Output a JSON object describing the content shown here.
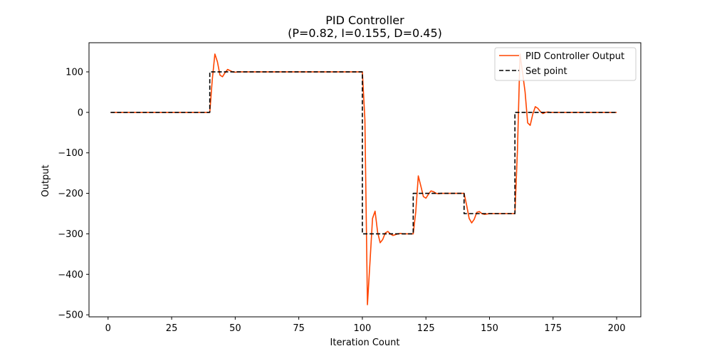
{
  "chart_data": {
    "type": "line",
    "title": "PID Controller",
    "subtitle": "(P=0.82, I=0.155, D=0.45)",
    "xlabel": "Iteration Count",
    "ylabel": "Output",
    "xlim": [
      -7.5,
      209.5
    ],
    "ylim": [
      -505,
      172
    ],
    "x_ticks": [
      0,
      25,
      50,
      75,
      100,
      125,
      150,
      175,
      200
    ],
    "y_ticks": [
      -500,
      -400,
      -300,
      -200,
      -100,
      0,
      100
    ],
    "x_tick_labels": [
      "0",
      "25",
      "50",
      "75",
      "100",
      "125",
      "150",
      "175",
      "200"
    ],
    "y_tick_labels": [
      "−500",
      "−400",
      "−300",
      "−200",
      "−100",
      "0",
      "100"
    ],
    "grid": false,
    "legend_position": "top-right",
    "series": [
      {
        "name": "PID Controller Output",
        "color": "#ff4500",
        "style": "solid",
        "x": [
          1,
          2,
          3,
          4,
          5,
          6,
          7,
          8,
          9,
          10,
          11,
          12,
          13,
          14,
          15,
          16,
          17,
          18,
          19,
          20,
          21,
          22,
          23,
          24,
          25,
          26,
          27,
          28,
          29,
          30,
          31,
          32,
          33,
          34,
          35,
          36,
          37,
          38,
          39,
          40,
          41,
          42,
          43,
          44,
          45,
          46,
          47,
          48,
          49,
          50,
          51,
          52,
          53,
          54,
          55,
          56,
          57,
          58,
          59,
          60,
          61,
          62,
          63,
          64,
          65,
          66,
          67,
          68,
          69,
          70,
          71,
          72,
          73,
          74,
          75,
          76,
          77,
          78,
          79,
          80,
          81,
          82,
          83,
          84,
          85,
          86,
          87,
          88,
          89,
          90,
          91,
          92,
          93,
          94,
          95,
          96,
          97,
          98,
          99,
          100,
          101,
          102,
          103,
          104,
          105,
          106,
          107,
          108,
          109,
          110,
          111,
          112,
          113,
          114,
          115,
          116,
          117,
          118,
          119,
          120,
          121,
          122,
          123,
          124,
          125,
          126,
          127,
          128,
          129,
          130,
          131,
          132,
          133,
          134,
          135,
          136,
          137,
          138,
          139,
          140,
          141,
          142,
          143,
          144,
          145,
          146,
          147,
          148,
          149,
          150,
          151,
          152,
          153,
          154,
          155,
          156,
          157,
          158,
          159,
          160,
          161,
          162,
          163,
          164,
          165,
          166,
          167,
          168,
          169,
          170,
          171,
          172,
          173,
          174,
          175,
          176,
          177,
          178,
          179,
          180,
          181,
          182,
          183,
          184,
          185,
          186,
          187,
          188,
          189,
          190,
          191,
          192,
          193,
          194,
          195,
          196,
          197,
          198,
          199,
          200
        ],
        "y": [
          0,
          0,
          0,
          0,
          0,
          0,
          0,
          0,
          0,
          0,
          0,
          0,
          0,
          0,
          0,
          0,
          0,
          0,
          0,
          0,
          0,
          0,
          0,
          0,
          0,
          0,
          0,
          0,
          0,
          0,
          0,
          0,
          0,
          0,
          0,
          0,
          0,
          0,
          0,
          0,
          82,
          144,
          125,
          92,
          88,
          98,
          106,
          103,
          100,
          99,
          100,
          100,
          100,
          100,
          100,
          100,
          100,
          100,
          100,
          100,
          100,
          100,
          100,
          100,
          100,
          100,
          100,
          100,
          100,
          100,
          100,
          100,
          100,
          100,
          100,
          100,
          100,
          100,
          100,
          100,
          100,
          100,
          100,
          100,
          100,
          100,
          100,
          100,
          100,
          100,
          100,
          100,
          100,
          100,
          100,
          100,
          100,
          100,
          100,
          100,
          -18,
          -475,
          -370,
          -262,
          -244,
          -296,
          -322,
          -314,
          -298,
          -294,
          -300,
          -304,
          -302,
          -300,
          -299,
          -300,
          -300,
          -300,
          -300,
          -300,
          -246,
          -157,
          -182,
          -208,
          -212,
          -202,
          -194,
          -196,
          -200,
          -201,
          -200,
          -200,
          -200,
          -200,
          -200,
          -200,
          -200,
          -200,
          -200,
          -200,
          -229,
          -262,
          -273,
          -264,
          -247,
          -245,
          -250,
          -252,
          -251,
          -250,
          -250,
          -250,
          -250,
          -250,
          -250,
          -250,
          -250,
          -250,
          -250,
          -250,
          -91,
          144,
          98,
          50,
          -26,
          -32,
          -5,
          14,
          10,
          2,
          -3,
          0,
          1,
          0,
          0,
          0,
          0,
          0,
          0,
          0,
          0,
          0,
          0,
          0,
          0,
          0,
          0,
          0,
          0,
          0,
          0,
          0,
          0,
          0,
          0,
          0,
          0,
          0,
          0,
          0
        ]
      },
      {
        "name": "Set point",
        "color": "#000000",
        "style": "dashed",
        "x": [
          1,
          40,
          40,
          100,
          100,
          120,
          120,
          140,
          140,
          160,
          160,
          200
        ],
        "y": [
          0,
          0,
          100,
          100,
          -300,
          -300,
          -200,
          -200,
          -250,
          -250,
          0,
          0
        ]
      }
    ]
  }
}
